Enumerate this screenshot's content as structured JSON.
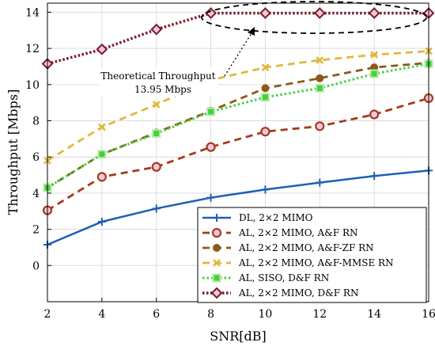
{
  "chart_data": {
    "type": "line",
    "xlabel": "SNR[dB]",
    "ylabel": "Throughput [Mbps]",
    "xlim": [
      2,
      16
    ],
    "ylim": [
      -2,
      14.5
    ],
    "xticks": [
      "2",
      "4",
      "6",
      "8",
      "10",
      "12",
      "14",
      "16"
    ],
    "yticks": [
      "0",
      "2",
      "4",
      "6",
      "8",
      "10",
      "12",
      "14"
    ],
    "grid": true,
    "legend_position": "bottom-right",
    "x": [
      2,
      4,
      6,
      8,
      10,
      12,
      14,
      16
    ],
    "series": [
      {
        "name": "DL, 2×2 MIMO",
        "color": "#1f5fb4",
        "marker": "plus",
        "dash": "solid",
        "values": [
          1.15,
          2.42,
          3.15,
          3.75,
          4.2,
          4.58,
          4.95,
          5.25
        ]
      },
      {
        "name": "AL, 2×2 MIMO, A&F RN",
        "color": "#a33b1e",
        "marker": "circle-open",
        "dash": "dashed",
        "values": [
          3.05,
          4.9,
          5.45,
          6.55,
          7.4,
          7.7,
          8.35,
          9.25
        ]
      },
      {
        "name": "AL, 2×2 MIMO, A&F-ZF RN",
        "color": "#8b5a1a",
        "marker": "circle-filled",
        "dash": "dashed",
        "values": [
          4.3,
          6.15,
          7.35,
          8.55,
          9.8,
          10.35,
          10.95,
          11.2
        ]
      },
      {
        "name": "AL, 2×2 MIMO, A&F-MMSE RN",
        "color": "#e0b83a",
        "marker": "x",
        "dash": "dashed",
        "values": [
          5.8,
          7.65,
          8.9,
          10.25,
          10.95,
          11.35,
          11.65,
          11.85
        ]
      },
      {
        "name": "AL, SISO, D&F RN",
        "color": "#3fd33f",
        "marker": "square",
        "dash": "dotted",
        "values": [
          4.3,
          6.15,
          7.3,
          8.5,
          9.3,
          9.8,
          10.6,
          11.15
        ]
      },
      {
        "name": "AL, 2×2 MIMO, D&F RN",
        "color": "#7a1c2a",
        "marker": "diamond",
        "dash": "dotted-thick",
        "values": [
          11.15,
          11.95,
          13.05,
          13.95,
          13.95,
          13.95,
          13.95,
          13.95
        ]
      }
    ],
    "annotation": {
      "lines": [
        "Theoretical Throughput",
        "13.95 Mbps"
      ]
    }
  }
}
